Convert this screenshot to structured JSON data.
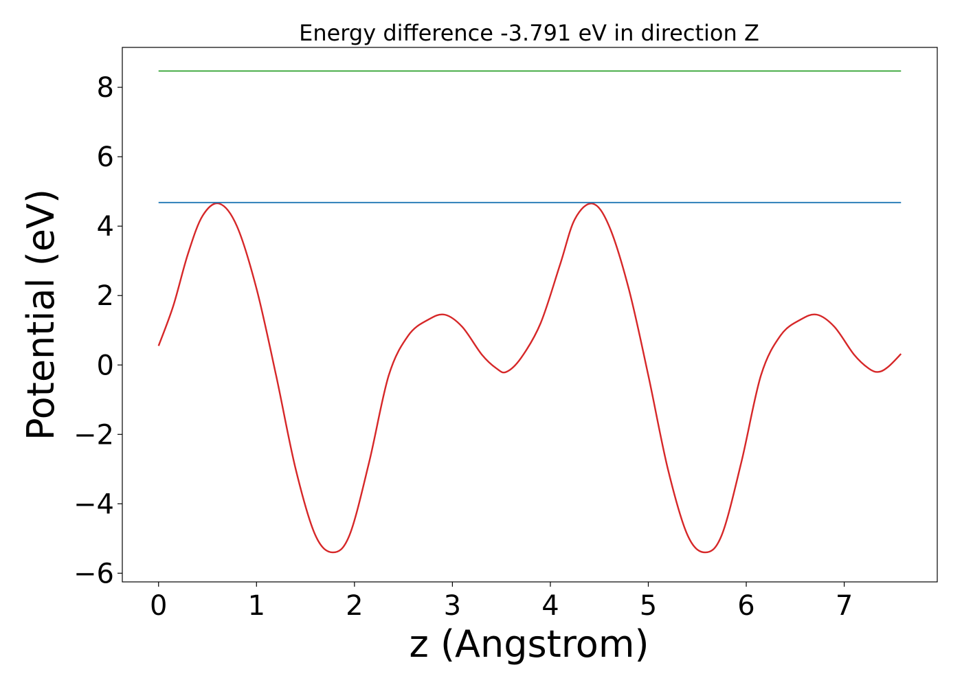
{
  "chart_data": {
    "type": "line",
    "title": "Energy difference -3.791 eV in direction Z",
    "xlabel": "z (Angstrom)",
    "ylabel": "Potential (eV)",
    "xlim": [
      -0.37,
      7.95
    ],
    "ylim": [
      -6.25,
      9.15
    ],
    "xticks": [
      0,
      1,
      2,
      3,
      4,
      5,
      6,
      7
    ],
    "yticks": [
      -6,
      -4,
      -2,
      0,
      2,
      4,
      6,
      8
    ],
    "xtick_labels": [
      "0",
      "1",
      "2",
      "3",
      "4",
      "5",
      "6",
      "7"
    ],
    "ytick_labels": [
      "−6",
      "−4",
      "−2",
      "0",
      "2",
      "4",
      "6",
      "8"
    ],
    "grid": false,
    "series": [
      {
        "color": "#d62728",
        "x": [
          0.0,
          0.15,
          0.3,
          0.45,
          0.62,
          0.8,
          1.0,
          1.2,
          1.4,
          1.6,
          1.78,
          1.95,
          2.15,
          2.35,
          2.55,
          2.75,
          2.92,
          3.1,
          3.3,
          3.45,
          3.55,
          3.7,
          3.9,
          4.1,
          4.25,
          4.43,
          4.6,
          4.8,
          5.0,
          5.2,
          5.4,
          5.58,
          5.75,
          5.95,
          6.15,
          6.35,
          6.55,
          6.72,
          6.9,
          7.1,
          7.25,
          7.35,
          7.45,
          7.58
        ],
        "y": [
          0.55,
          1.7,
          3.2,
          4.3,
          4.65,
          4.0,
          2.2,
          -0.3,
          -3.0,
          -4.9,
          -5.4,
          -4.9,
          -2.8,
          -0.3,
          0.85,
          1.3,
          1.45,
          1.1,
          0.3,
          -0.1,
          -0.2,
          0.2,
          1.2,
          2.9,
          4.2,
          4.65,
          4.0,
          2.2,
          -0.3,
          -3.0,
          -4.9,
          -5.4,
          -4.9,
          -2.8,
          -0.3,
          0.85,
          1.3,
          1.45,
          1.1,
          0.3,
          -0.1,
          -0.2,
          -0.05,
          0.32
        ]
      },
      {
        "color": "#1f77b4",
        "x": [
          0.0,
          7.58
        ],
        "y": [
          4.68,
          4.68
        ]
      },
      {
        "color": "#2ca02c",
        "x": [
          0.0,
          7.58
        ],
        "y": [
          8.47,
          8.47
        ]
      }
    ]
  }
}
